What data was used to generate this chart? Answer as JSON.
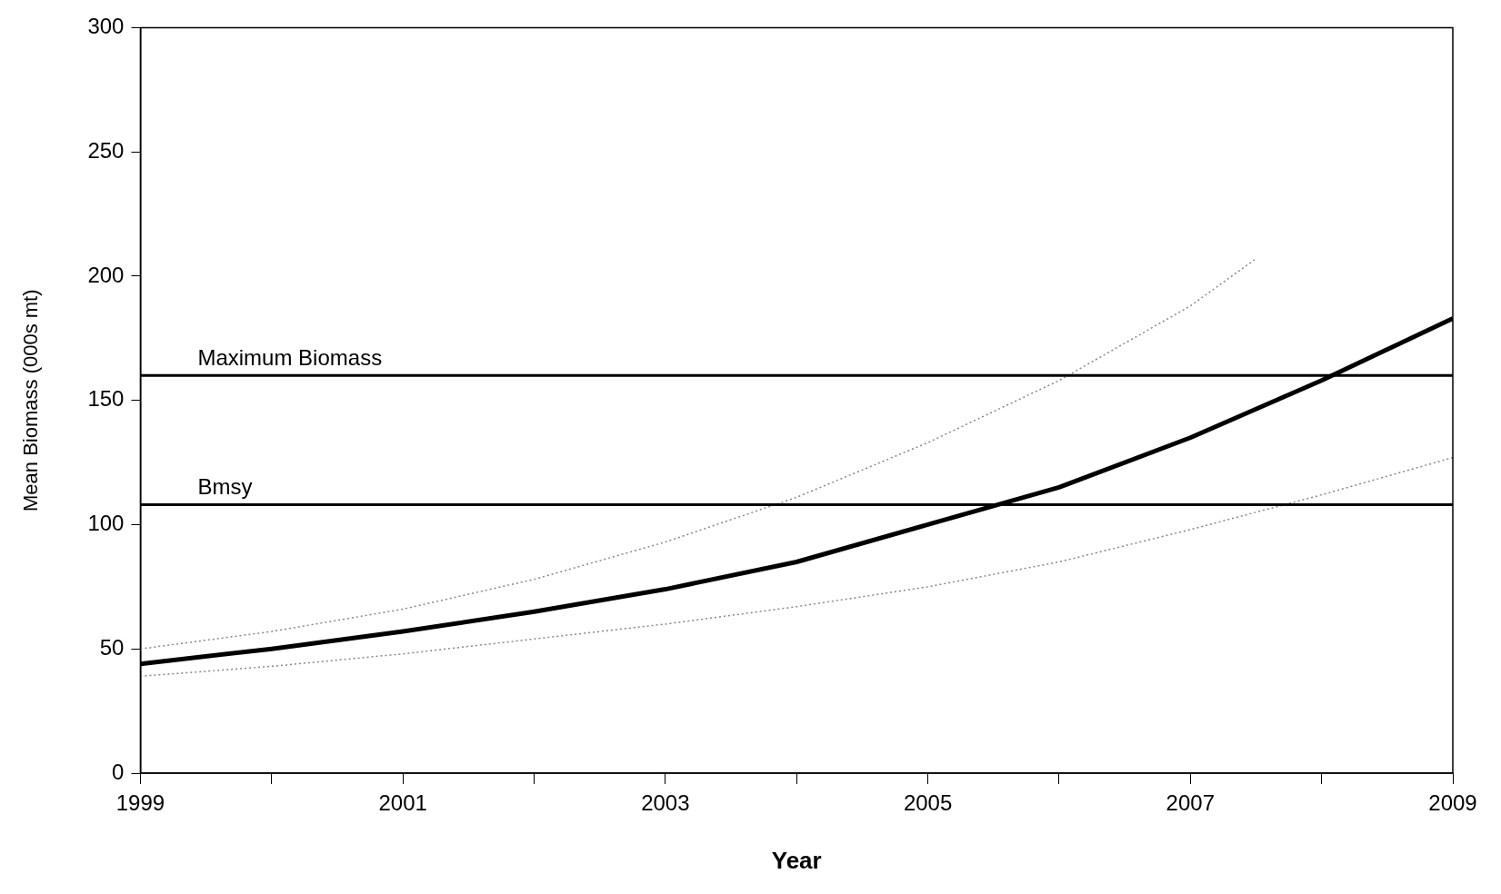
{
  "chart_data": {
    "type": "line",
    "xlabel": "Year",
    "ylabel": "Mean Biomass (000s mt)",
    "x": [
      1999,
      2000,
      2001,
      2002,
      2003,
      2004,
      2005,
      2006,
      2007,
      2008,
      2009
    ],
    "series": [
      {
        "color": "#000000",
        "line_style": "solid",
        "values": [
          44,
          50,
          57,
          65,
          74,
          85,
          100,
          115,
          135,
          158,
          183
        ]
      },
      {
        "color": "#888888",
        "line_style": "dotted",
        "x": [
          1999,
          2000,
          2001,
          2002,
          2003,
          2004,
          2005,
          2006,
          2007,
          2007.5
        ],
        "values": [
          50,
          57,
          66,
          78,
          93,
          111,
          133,
          158,
          188,
          207
        ]
      },
      {
        "color": "#888888",
        "line_style": "dotted",
        "values": [
          39,
          43,
          48,
          54,
          60,
          67,
          75,
          85,
          98,
          112,
          127
        ]
      }
    ],
    "xlim": [
      1999,
      2009
    ],
    "xticks": [
      1999,
      {
        "value": 2000,
        "label": null
      },
      2001,
      {
        "value": 2002,
        "label": null
      },
      2003,
      {
        "value": 2004,
        "label": null
      },
      2005,
      {
        "value": 2006,
        "label": null
      },
      2007,
      {
        "value": 2008,
        "label": null
      },
      2009
    ],
    "ylim": [
      0,
      300
    ],
    "yticks": [
      0,
      50,
      100,
      150,
      200,
      250,
      300
    ],
    "ref_lines": [
      {
        "axis": "y",
        "value": 160,
        "label": "Maximum Biomass",
        "color": "#000000"
      },
      {
        "axis": "y",
        "value": 108,
        "label": "Bmsy",
        "color": "#000000"
      }
    ],
    "grid": false,
    "legend": false,
    "marker": "none"
  }
}
